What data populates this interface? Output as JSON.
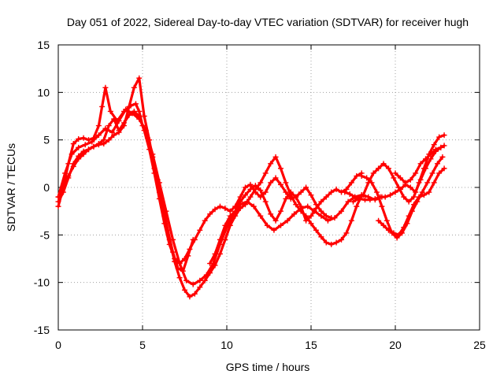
{
  "chart_data": {
    "type": "scatter",
    "title": "Day 051 of 2022, Sidereal Day-to-day VTEC variation (SDTVAR) for receiver hugh",
    "xlabel": "GPS time / hours",
    "ylabel": "SDTVAR / TECUs",
    "xlim": [
      0,
      25
    ],
    "ylim": [
      -15,
      15
    ],
    "xticks": [
      "0",
      "5",
      "10",
      "15",
      "20",
      "25"
    ],
    "yticks": [
      "-15",
      "-10",
      "-5",
      "0",
      "5",
      "10",
      "15"
    ],
    "xtick_values": [
      0,
      5,
      10,
      15,
      20,
      25
    ],
    "ytick_values": [
      -15,
      -10,
      -5,
      0,
      5,
      10,
      15
    ],
    "grid": true,
    "marker": "plus",
    "color": "#ff0000",
    "series": [
      {
        "x": [
          0.0,
          0.3,
          0.6,
          0.9,
          1.2,
          1.5,
          1.8,
          2.1,
          2.4,
          2.6,
          2.8,
          3.1,
          3.5,
          3.9,
          4.3,
          4.6,
          4.8,
          5.0,
          5.3,
          5.6,
          5.9,
          6.2,
          6.5,
          6.8,
          7.1,
          7.4,
          7.7,
          8.0
        ],
        "y": [
          -2.0,
          0.0,
          2.5,
          4.6,
          5.1,
          5.2,
          5.0,
          5.2,
          6.5,
          8.5,
          10.5,
          8.0,
          7.0,
          8.0,
          8.6,
          8.8,
          8.0,
          6.5,
          5.2,
          3.2,
          0.8,
          -1.8,
          -4.5,
          -6.8,
          -8.5,
          -8.8,
          -7.2,
          -5.5
        ]
      },
      {
        "x": [
          0.0,
          0.4,
          0.8,
          1.2,
          1.6,
          2.0,
          2.4,
          2.8,
          3.2,
          3.6,
          4.0,
          4.4,
          4.8,
          5.2,
          5.6,
          6.0,
          6.4,
          6.8,
          7.2,
          7.6,
          8.0,
          8.4,
          8.8,
          9.2,
          9.6,
          10.0,
          10.4,
          10.8,
          11.2,
          11.6,
          12.0,
          12.4,
          12.8,
          13.2,
          13.6,
          14.0,
          14.4,
          14.8,
          15.2,
          15.6,
          16.0,
          16.4,
          16.8,
          17.2,
          17.6,
          18.0,
          18.4,
          18.8,
          19.2
        ],
        "y": [
          -1.0,
          1.5,
          3.5,
          4.2,
          4.5,
          4.8,
          5.5,
          6.2,
          5.8,
          7.0,
          8.2,
          7.8,
          7.2,
          6.0,
          3.5,
          0.5,
          -2.5,
          -5.5,
          -8.0,
          -9.8,
          -10.2,
          -9.8,
          -9.2,
          -8.0,
          -6.0,
          -4.2,
          -2.8,
          -1.8,
          -1.5,
          -2.0,
          -3.0,
          -4.0,
          -4.5,
          -4.0,
          -3.5,
          -2.8,
          -2.2,
          -2.0,
          -2.5,
          -3.0,
          -3.5,
          -3.2,
          -2.5,
          -1.5,
          -1.0,
          -0.8,
          -1.0,
          -1.3,
          -1.0
        ]
      },
      {
        "x": [
          0.0,
          0.3,
          0.6,
          0.9,
          1.2,
          1.5,
          1.8,
          2.1,
          2.4,
          2.7,
          3.0,
          3.3,
          3.6,
          3.9,
          4.2,
          4.5,
          4.8,
          5.1,
          5.4,
          5.7,
          6.0,
          6.3,
          6.6,
          6.9,
          7.2,
          7.5,
          7.8,
          8.1,
          8.4,
          8.7,
          9.0,
          9.3,
          9.6,
          9.9,
          10.2,
          10.5,
          10.8,
          11.1,
          11.4,
          11.7,
          12.0,
          12.3,
          12.6,
          12.9,
          13.2,
          13.5,
          13.8,
          14.1,
          14.4,
          14.7,
          15.0,
          15.3,
          15.6,
          15.9,
          16.2,
          16.5,
          16.8,
          17.1,
          17.4,
          17.7,
          18.0
        ],
        "y": [
          -1.5,
          -0.5,
          1.0,
          2.5,
          3.3,
          3.8,
          4.0,
          4.3,
          4.5,
          4.6,
          5.0,
          5.5,
          5.8,
          6.5,
          8.5,
          10.5,
          11.5,
          7.5,
          5.0,
          2.0,
          -0.5,
          -3.0,
          -5.5,
          -7.8,
          -9.5,
          -10.8,
          -11.5,
          -11.2,
          -10.5,
          -9.8,
          -9.0,
          -8.2,
          -7.0,
          -5.5,
          -4.0,
          -3.0,
          -2.2,
          -1.8,
          -1.0,
          -0.2,
          0.5,
          1.5,
          2.5,
          3.2,
          2.0,
          0.5,
          -0.8,
          -1.8,
          -2.5,
          -3.0,
          -3.8,
          -4.5,
          -5.2,
          -5.8,
          -6.0,
          -5.8,
          -5.5,
          -4.8,
          -3.5,
          -2.0,
          -0.8
        ]
      },
      {
        "x": [
          0.0,
          0.3,
          0.6,
          0.9,
          1.2,
          1.5,
          1.8,
          2.1,
          2.4,
          2.7,
          3.0,
          3.3,
          3.6,
          3.9,
          4.2,
          4.5,
          4.8,
          5.1,
          5.4,
          5.7,
          6.0,
          6.3,
          6.6,
          6.9,
          7.2,
          7.5,
          7.8,
          8.1,
          8.4,
          8.7,
          9.0,
          9.3,
          9.6,
          9.9,
          10.2,
          10.5,
          10.8,
          11.1,
          11.4,
          11.7,
          12.0,
          12.3,
          12.6,
          12.9,
          13.2,
          13.5,
          13.8,
          14.1,
          14.4,
          14.7,
          15.0,
          15.3,
          15.6,
          15.9,
          16.2
        ],
        "y": [
          -1.0,
          0.0,
          1.2,
          2.2,
          3.0,
          3.5,
          4.0,
          4.3,
          4.6,
          5.0,
          6.5,
          7.2,
          6.0,
          6.8,
          7.6,
          8.0,
          7.5,
          6.0,
          4.0,
          1.5,
          -1.2,
          -3.8,
          -6.0,
          -7.5,
          -8.0,
          -7.5,
          -6.5,
          -5.5,
          -4.5,
          -3.5,
          -2.8,
          -2.3,
          -2.0,
          -2.2,
          -2.5,
          -2.0,
          -1.0,
          0.0,
          0.3,
          -0.5,
          -1.0,
          -0.5,
          0.5,
          1.0,
          0.3,
          -0.5,
          -1.2,
          -1.0,
          -0.5,
          0.0,
          -0.8,
          -1.8,
          -2.5,
          -3.0,
          -3.2
        ]
      },
      {
        "x": [
          9.0,
          9.3,
          9.6,
          9.9,
          10.2,
          10.5,
          10.8,
          11.1,
          11.4,
          11.7,
          12.0,
          12.3,
          12.6,
          12.9,
          13.2,
          13.5,
          13.8,
          14.1,
          14.4,
          14.7,
          15.0,
          15.3,
          15.6,
          15.9,
          16.2,
          16.5,
          16.8,
          17.1,
          17.4,
          17.7,
          18.0
        ],
        "y": [
          -8.0,
          -7.0,
          -5.5,
          -4.0,
          -3.0,
          -2.5,
          -1.5,
          -0.8,
          -0.2,
          0.2,
          -0.3,
          -1.5,
          -2.8,
          -3.5,
          -2.5,
          -1.2,
          -0.5,
          -1.0,
          -2.0,
          -3.5,
          -3.0,
          -2.2,
          -1.5,
          -1.0,
          -0.5,
          -0.2,
          -0.5,
          -0.2,
          0.5,
          1.2,
          1.5
        ]
      },
      {
        "x": [
          17.5,
          17.8,
          18.1,
          18.4,
          18.7,
          19.0,
          19.3,
          19.6,
          19.9,
          20.2,
          20.5,
          20.8,
          21.1,
          21.4,
          21.7,
          22.0,
          22.3,
          22.6,
          22.9
        ],
        "y": [
          -1.5,
          -1.2,
          -0.8,
          0.5,
          1.5,
          2.0,
          2.5,
          2.0,
          1.0,
          0.0,
          -1.0,
          -1.5,
          -1.0,
          0.5,
          2.0,
          3.5,
          4.5,
          5.3,
          5.5
        ]
      },
      {
        "x": [
          17.0,
          17.3,
          17.6,
          17.9,
          18.2,
          18.5,
          18.8,
          19.1,
          19.4,
          19.7,
          20.0,
          20.3,
          20.6,
          20.9,
          21.2,
          21.5,
          21.8,
          22.1,
          22.4,
          22.7,
          22.9
        ],
        "y": [
          -0.5,
          -0.7,
          -1.0,
          -1.2,
          -1.3,
          -1.3,
          -1.2,
          -1.0,
          -1.0,
          -0.8,
          -0.5,
          -0.2,
          0.3,
          0.0,
          -0.5,
          0.8,
          2.0,
          3.0,
          3.8,
          4.2,
          4.4
        ]
      },
      {
        "x": [
          18.0,
          18.3,
          18.6,
          18.9,
          19.2,
          19.5,
          19.8,
          20.1,
          20.4,
          20.7,
          21.0,
          21.3,
          21.6,
          21.9,
          22.2,
          22.5,
          22.8
        ],
        "y": [
          1.2,
          1.0,
          0.5,
          -0.5,
          -2.0,
          -3.5,
          -4.8,
          -5.3,
          -4.8,
          -3.8,
          -2.5,
          -1.5,
          -0.5,
          0.5,
          1.5,
          2.5,
          3.2
        ]
      },
      {
        "x": [
          19.0,
          19.3,
          19.6,
          19.9,
          20.2,
          20.5,
          20.8,
          21.1,
          21.4,
          21.7,
          22.0,
          22.3,
          22.6,
          22.9
        ],
        "y": [
          -3.5,
          -4.0,
          -4.5,
          -4.8,
          -5.0,
          -4.2,
          -3.0,
          -1.8,
          -1.0,
          -0.8,
          -0.5,
          0.5,
          1.5,
          2.0
        ]
      },
      {
        "x": [
          20.0,
          20.3,
          20.6,
          20.9,
          21.2,
          21.5,
          21.8,
          22.1,
          22.4,
          22.7
        ],
        "y": [
          1.5,
          1.0,
          0.5,
          0.8,
          1.5,
          2.5,
          3.0,
          3.5,
          4.0,
          4.2
        ]
      }
    ]
  }
}
